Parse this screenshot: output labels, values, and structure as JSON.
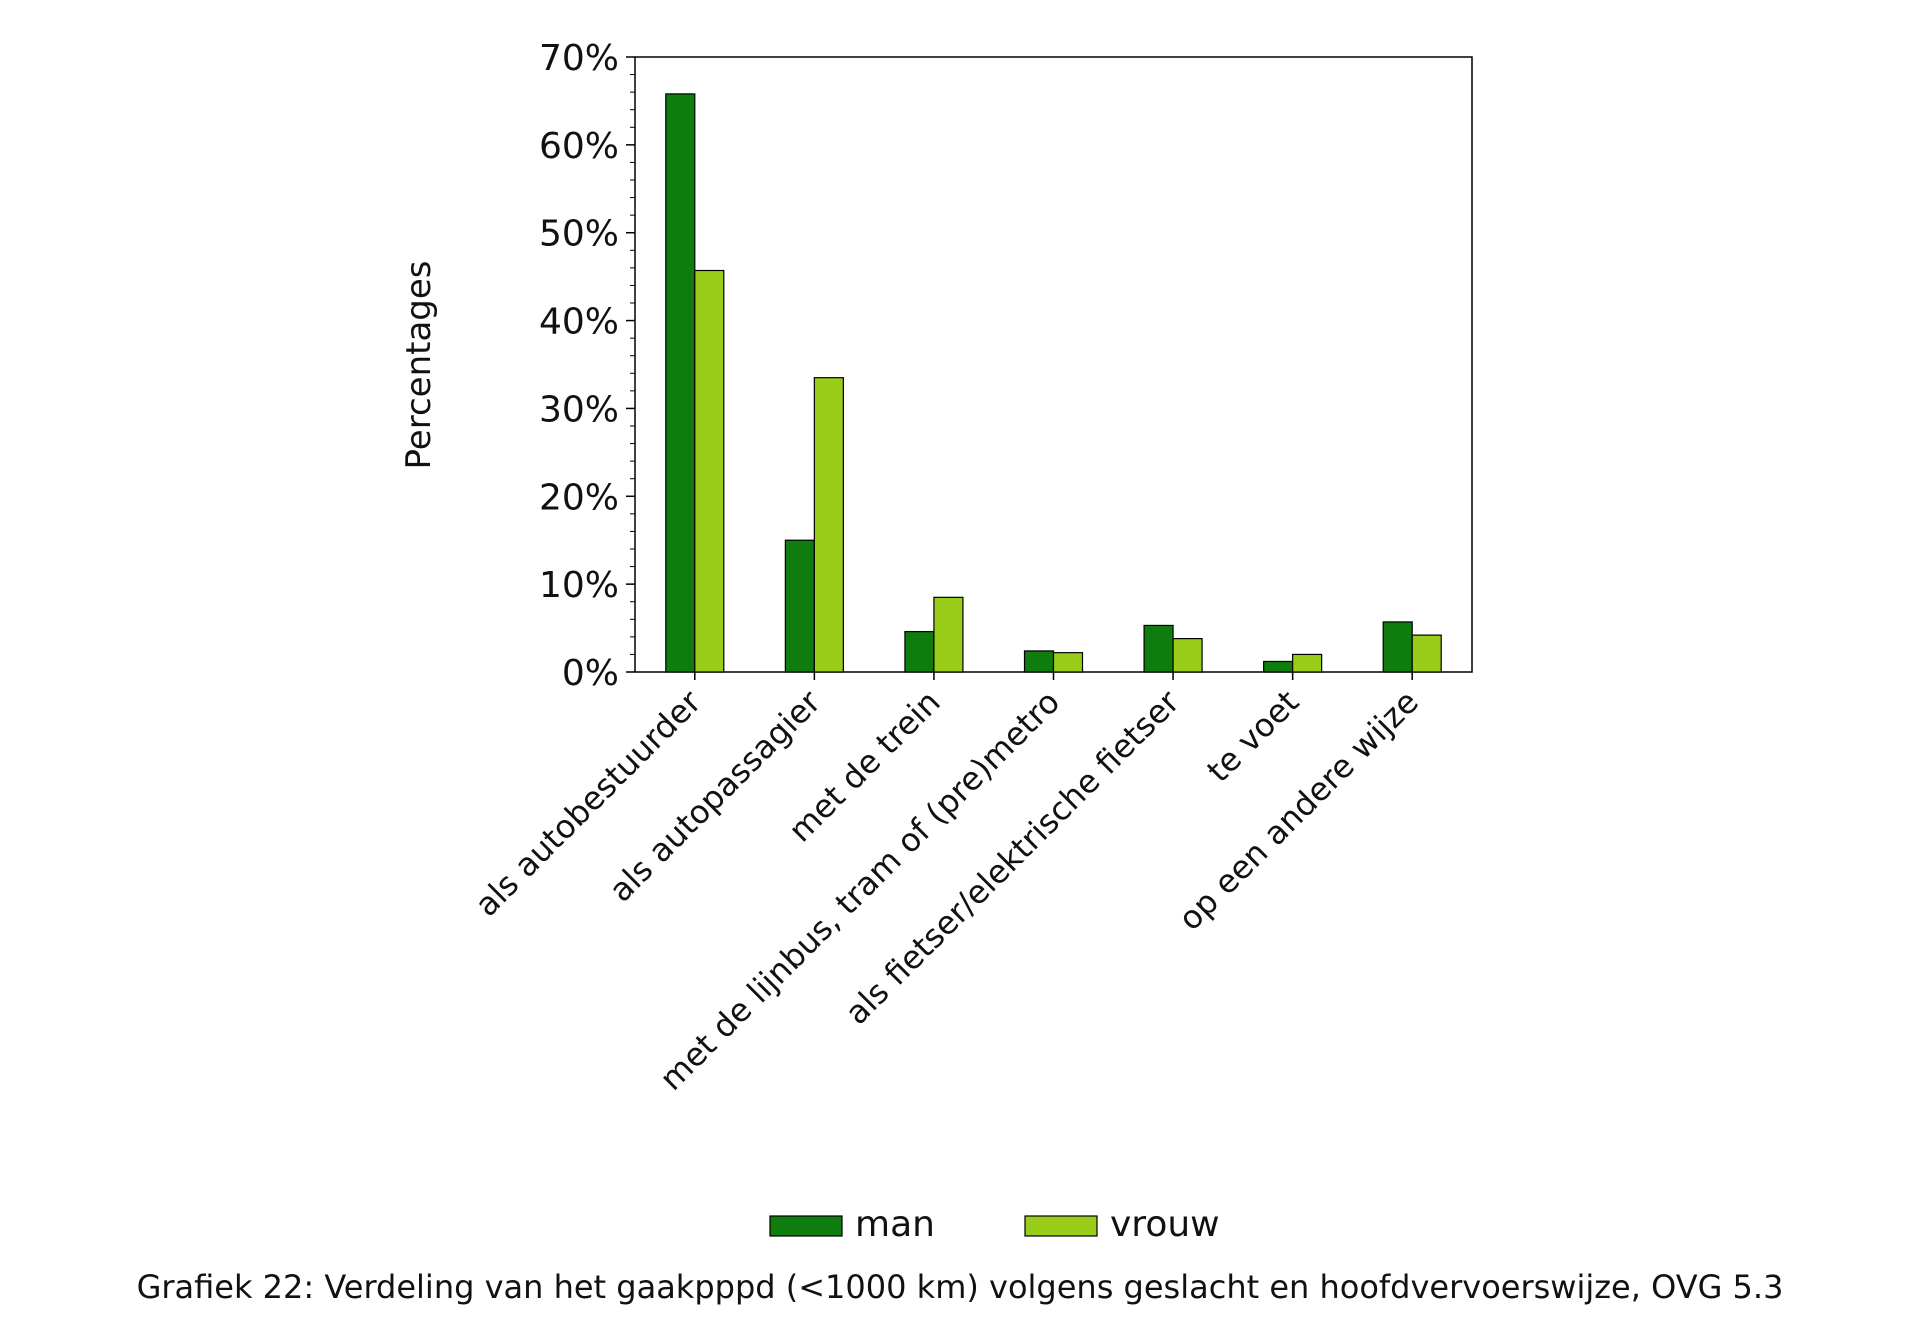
{
  "chart_data": {
    "type": "bar",
    "ylabel": "Percentages",
    "xlabel": "",
    "ylim": [
      0,
      70
    ],
    "yticks": [
      "0%",
      "10%",
      "20%",
      "30%",
      "40%",
      "50%",
      "60%",
      "70%"
    ],
    "categories": [
      "als autobestuurder",
      "als autopassagier",
      "met de trein",
      "met de lijnbus, tram of (pre)metro",
      "als fietser/elektrische fietser",
      "te voet",
      "op een andere wijze"
    ],
    "series": [
      {
        "name": "man",
        "color": "#0e7d0e",
        "values": [
          65.8,
          15.0,
          4.6,
          2.4,
          5.3,
          1.2,
          5.7
        ]
      },
      {
        "name": "vrouw",
        "color": "#9acd1a",
        "values": [
          45.7,
          33.5,
          8.5,
          2.2,
          3.8,
          2.0,
          4.2
        ]
      }
    ],
    "legend_position": "bottom",
    "grid": false
  },
  "caption": "Grafiek 22: Verdeling van het gaakpppd (<1000 km) volgens geslacht en hoofdvervoerswijze, OVG 5.3"
}
